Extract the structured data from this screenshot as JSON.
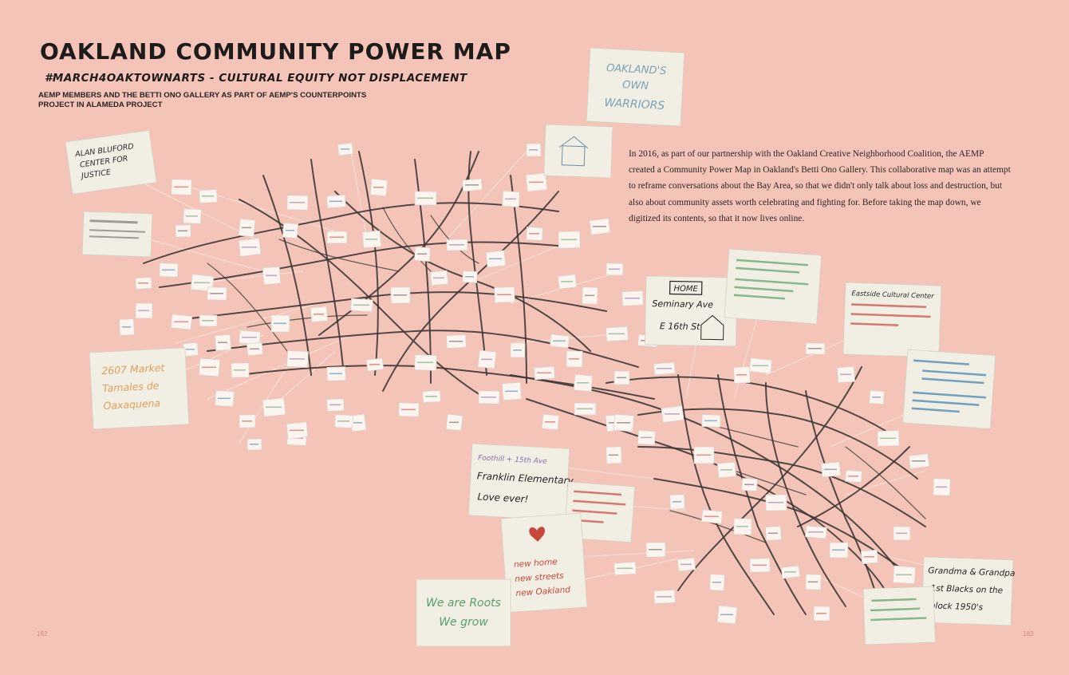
{
  "page": {
    "title": "OAKLAND COMMUNITY POWER MAP",
    "subtitle": "#MARCH4OAKTOWNARTS - CULTURAL EQUITY NOT DISPLACEMENT",
    "credit": "AEMP MEMBERS AND THE BETTI ONO GALLERY AS PART OF AEMP'S COUNTERPOINTS PROJECT IN ALAMEDA PROJECT",
    "body": "In 2016, as part of our partnership with the Oakland Creative Neighborhood Coalition, the AEMP created a Community Power Map in Oakland's Betti Ono Gallery. This collaborative map was an attempt to reframe conversations about the Bay Area, so that we didn't only talk about loss and destruction, but also about community assets worth celebrating and fighting for. Before taking the map down, we digitized its contents, so that it now lives online."
  },
  "notes": {
    "oaklands_own_warriors": [
      "OAKLAND'S",
      "OWN",
      "WARRIORS"
    ],
    "alan_blueford": [
      "ALAN BLUFORD",
      "CENTER FOR",
      "JUSTICE"
    ],
    "home": [
      "HOME",
      "Seminary Ave",
      "E 16th St"
    ],
    "franklin": [
      "Foothill + 15th Ave",
      "Franklin Elementary",
      "Love ever!"
    ],
    "we_are_roots": [
      "We are Roots",
      "We grow"
    ],
    "grandma": [
      "Grandma & Grandpa",
      "1st Blacks on the",
      "block 1950's"
    ],
    "address_2607": [
      "2607 Market",
      "Tamales de",
      "Oaxaquena"
    ],
    "new_home": [
      "new home",
      "new streets",
      "new Oakland"
    ],
    "eastside": [
      "Eastside Cultural Center"
    ]
  },
  "colors": {
    "background": "#f4c4b8",
    "ink": "#1e1b1b",
    "map_line": "#3b3533",
    "note_paper": "#f1eee3",
    "string": "#fbe9e4"
  },
  "folio": {
    "left": "182",
    "right": "183"
  }
}
